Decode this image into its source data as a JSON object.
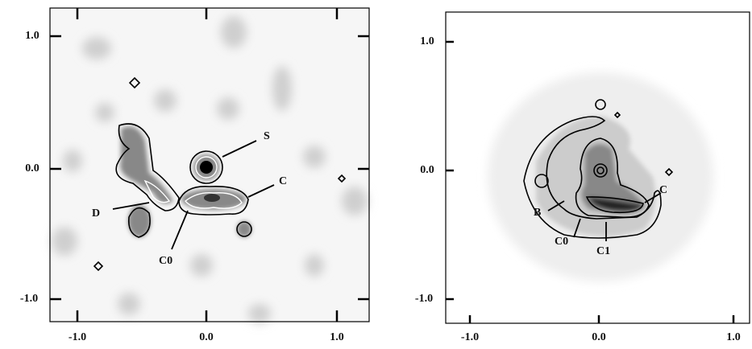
{
  "left_panel": {
    "xticks": [
      "-1.0",
      "0.0",
      "1.0"
    ],
    "yticks": [
      "1.0",
      "0.0",
      "-1.0"
    ],
    "labels": [
      "S",
      "C",
      "D",
      "C0"
    ]
  },
  "right_panel": {
    "xticks": [
      "-1.0",
      "0.0",
      "1.0"
    ],
    "yticks": [
      "1.0",
      "0.0",
      "-1.0"
    ],
    "labels": [
      "C",
      "B",
      "C0",
      "C1"
    ]
  }
}
